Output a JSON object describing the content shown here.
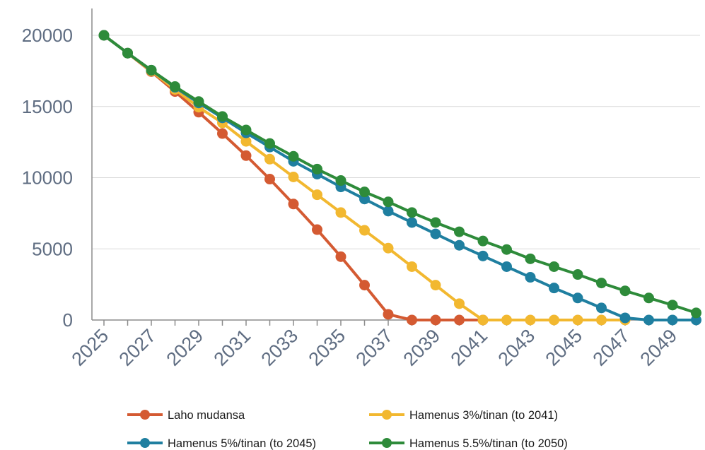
{
  "chart_data": {
    "type": "line",
    "title": "",
    "xlabel": "",
    "ylabel": "",
    "x": [
      2025,
      2026,
      2027,
      2028,
      2029,
      2030,
      2031,
      2032,
      2033,
      2034,
      2035,
      2036,
      2037,
      2038,
      2039,
      2040,
      2041,
      2042,
      2043,
      2044,
      2045,
      2046,
      2047,
      2048,
      2049,
      2050
    ],
    "x_tick_labels": [
      "2025",
      "2027",
      "2029",
      "2031",
      "2033",
      "2035",
      "2037",
      "2039",
      "2041",
      "2043",
      "2045",
      "2047",
      "2049"
    ],
    "y_tick_labels": [
      "0",
      "5000",
      "10000",
      "15000",
      "20000"
    ],
    "ylim": [
      0,
      21000
    ],
    "grid": "horizontal",
    "legend_position": "bottom",
    "series": [
      {
        "name": "Laho mudansa",
        "color": "#d45a32",
        "values": [
          20000,
          18750,
          17450,
          16050,
          14600,
          13100,
          11550,
          9900,
          8150,
          6350,
          4450,
          2450,
          400,
          0,
          0,
          0,
          0,
          null,
          null,
          null,
          null,
          null,
          null,
          null,
          null,
          null
        ]
      },
      {
        "name": "Hamenus 3%/tinan (to 2041)",
        "color": "#f2b830",
        "values": [
          20000,
          18750,
          17500,
          16200,
          14950,
          13850,
          12550,
          11300,
          10050,
          8800,
          7550,
          6300,
          5050,
          3750,
          2450,
          1150,
          0,
          0,
          0,
          0,
          0,
          0,
          0,
          null,
          null,
          null
        ]
      },
      {
        "name": "Hamenus 5%/tinan (to 2045)",
        "color": "#1f7fa0",
        "values": [
          20000,
          18750,
          17550,
          16350,
          15250,
          14200,
          13150,
          12150,
          11150,
          10250,
          9350,
          8500,
          7650,
          6850,
          6050,
          5250,
          4500,
          3750,
          3000,
          2250,
          1550,
          850,
          150,
          0,
          0,
          0
        ]
      },
      {
        "name": "Hamenus 5.5%/tinan (to 2050)",
        "color": "#2e8b3a",
        "values": [
          20000,
          18750,
          17550,
          16400,
          15350,
          14300,
          13350,
          12400,
          11500,
          10600,
          9800,
          9000,
          8300,
          7550,
          6850,
          6200,
          5550,
          4950,
          4300,
          3750,
          3200,
          2600,
          2050,
          1550,
          1050,
          500
        ]
      }
    ]
  }
}
